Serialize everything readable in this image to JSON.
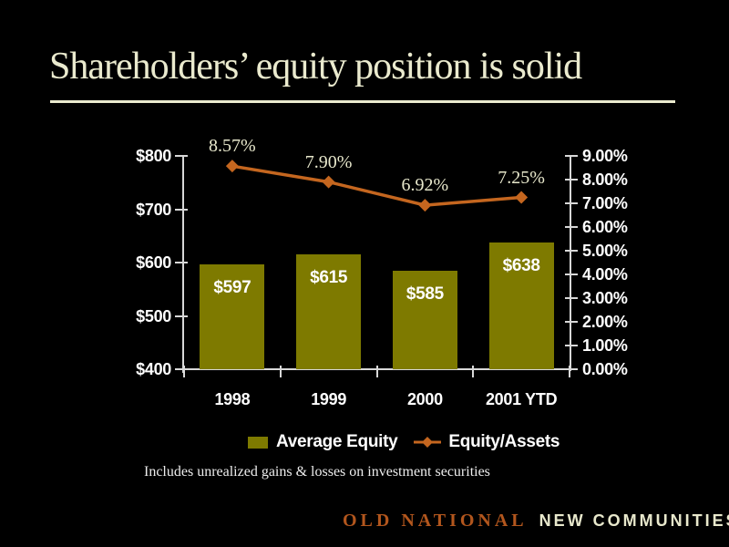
{
  "slide": {
    "title": "Shareholders’ equity position is solid",
    "footnote": "Includes unrealized gains & losses on investment securities",
    "footer": {
      "brand": "OLD NATIONAL",
      "tagline": "NEW COMMUNITIES"
    }
  },
  "colors": {
    "background": "#000000",
    "title_text": "#EAEACE",
    "bar_fill": "#7E7A00",
    "line_stroke": "#C4661F",
    "axis_line": "#D8D8D8",
    "axis_text": "#FFFFFF",
    "percent_label_text": "#E8E8CC",
    "bar_label_text": "#FFFFFF",
    "brand_text": "#B2561D",
    "tagline_text": "#E8E8CC"
  },
  "chart_data": {
    "type": "bar",
    "subtype": "bar-line-combo",
    "categories": [
      "1998",
      "1999",
      "2000",
      "2001 YTD"
    ],
    "series": [
      {
        "name": "Average Equity",
        "type": "bar",
        "axis": "left",
        "values": [
          597,
          615,
          585,
          638
        ],
        "labels": [
          "$597",
          "$615",
          "$585",
          "$638"
        ]
      },
      {
        "name": "Equity/Assets",
        "type": "line",
        "axis": "right",
        "values": [
          8.57,
          7.9,
          6.92,
          7.25
        ],
        "labels": [
          "8.57%",
          "7.90%",
          "6.92%",
          "7.25%"
        ]
      }
    ],
    "left_axis": {
      "min": 400,
      "max": 800,
      "tick_labels": [
        "$800",
        "$700",
        "$600",
        "$500",
        "$400"
      ]
    },
    "right_axis": {
      "min": 0,
      "max": 9,
      "tick_labels": [
        "9.00%",
        "8.00%",
        "7.00%",
        "6.00%",
        "5.00%",
        "4.00%",
        "3.00%",
        "2.00%",
        "1.00%",
        "0.00%"
      ]
    },
    "legend": {
      "position": "bottom",
      "entries": [
        "Average Equity",
        "Equity/Assets"
      ]
    },
    "grid": false
  }
}
